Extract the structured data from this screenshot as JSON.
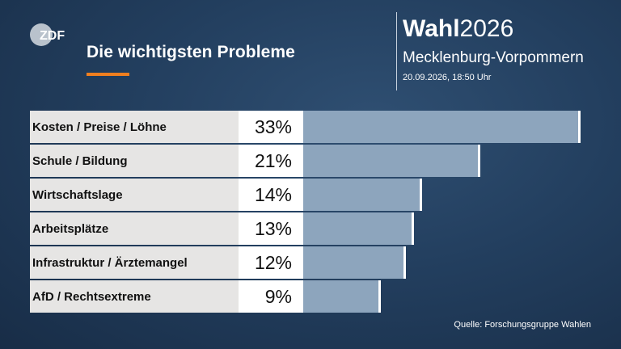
{
  "logo": {
    "text": "ZDF"
  },
  "header": {
    "title": "Die wichtigsten Probleme",
    "brand_strong": "Wahl",
    "brand_year": "2026",
    "region": "Mecklenburg-Vorpommern",
    "timestamp": "20.09.2026, 18:50 Uhr"
  },
  "source": "Quelle: Forschungsgruppe Wahlen",
  "colors": {
    "accent": "#f07f1f",
    "bar": "#8da5bd",
    "label_bg": "#e6e5e4"
  },
  "chart_data": {
    "type": "bar",
    "orientation": "horizontal",
    "categories": [
      "Kosten / Preise / Löhne",
      "Schule / Bildung",
      "Wirtschaftslage",
      "Arbeitsplätze",
      "Infrastruktur / Ärztemangel",
      "AfD / Rechtsextreme"
    ],
    "values": [
      33,
      21,
      14,
      13,
      12,
      9
    ],
    "value_labels": [
      "33%",
      "21%",
      "14%",
      "13%",
      "12%",
      "9%"
    ],
    "unit": "%",
    "title": "Die wichtigsten Probleme"
  }
}
